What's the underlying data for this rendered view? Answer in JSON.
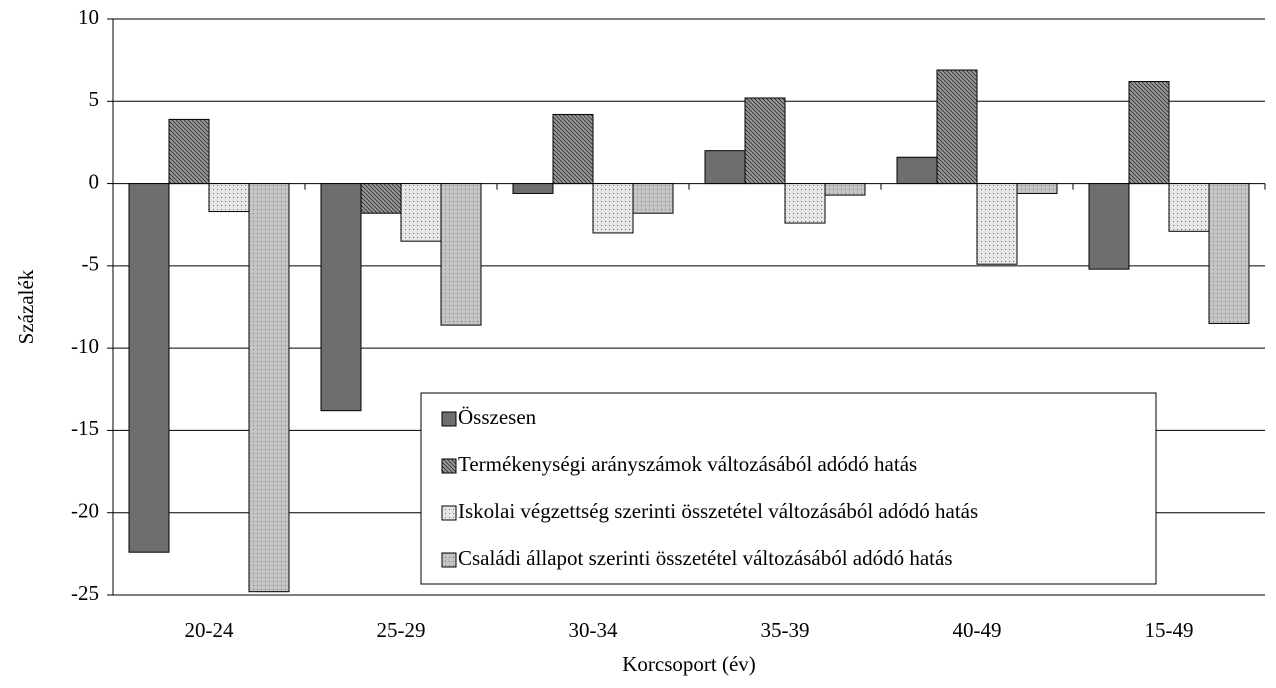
{
  "chart_data": {
    "type": "bar",
    "x_label": "Korcsoport (év)",
    "y_label": "Százalék",
    "categories": [
      "20-24",
      "25-29",
      "30-34",
      "35-39",
      "40-49",
      "15-49"
    ],
    "series": [
      {
        "name": "Összesen",
        "color": "#6e6e6e",
        "values": [
          -22.4,
          -13.8,
          -0.6,
          2.0,
          1.6,
          -5.2
        ]
      },
      {
        "name": "Termékenységi arányszámok változásából adódó hatás",
        "color": "#9a9a9a",
        "values": [
          3.9,
          -1.8,
          4.2,
          5.2,
          6.9,
          6.2
        ]
      },
      {
        "name": "Iskolai végzettség szerinti összetétel változásából adódó hatás",
        "color": "#e6e6e6",
        "values": [
          -1.7,
          -3.5,
          -3.0,
          -2.4,
          -4.9,
          -2.9
        ]
      },
      {
        "name": "Családi állapot szerinti összetétel változásából adódó hatás",
        "color": "#c4c4c4",
        "values": [
          -24.8,
          -8.6,
          -1.8,
          -0.7,
          -0.6,
          -8.5
        ]
      }
    ],
    "ylim": [
      -25,
      10
    ],
    "yticks": [
      -25,
      -20,
      -15,
      -10,
      -5,
      0,
      5,
      10
    ],
    "grid": true
  }
}
